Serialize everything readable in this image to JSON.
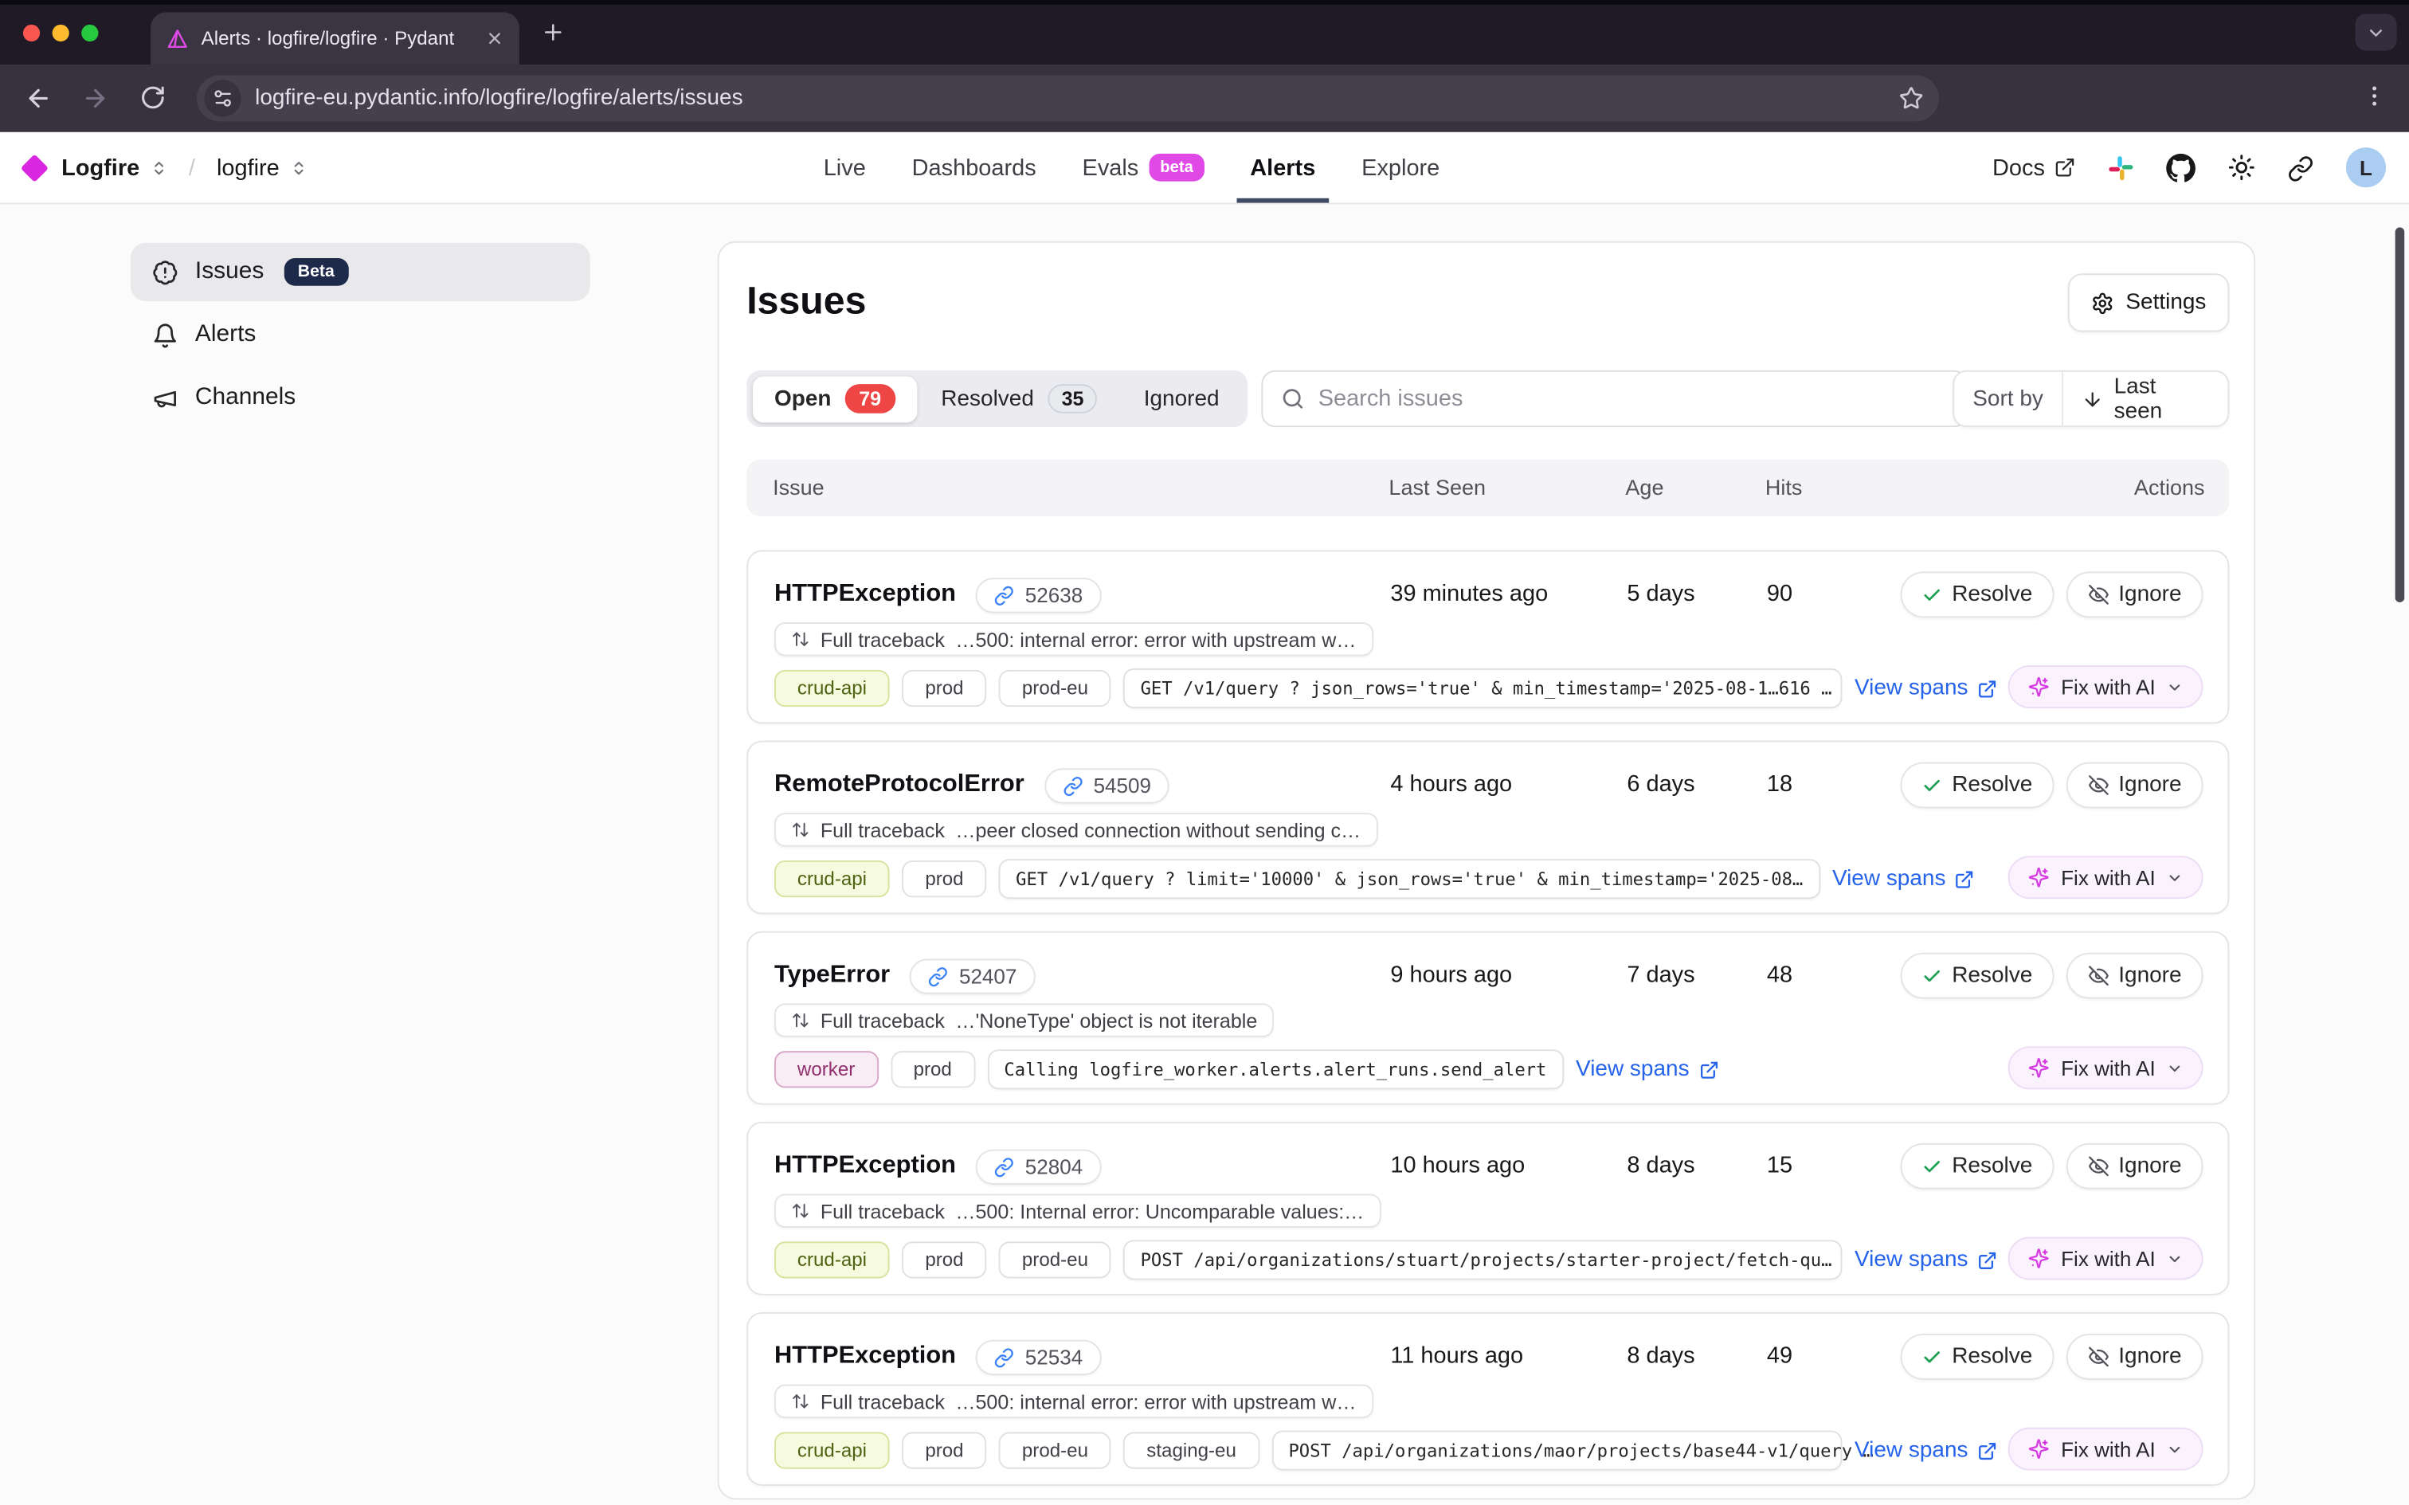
{
  "browser": {
    "tab_title": "Alerts · logfire/logfire · Pydant",
    "url": "logfire-eu.pydantic.info/logfire/logfire/alerts/issues"
  },
  "header": {
    "org": "Logfire",
    "separator": "/",
    "project": "logfire",
    "nav": [
      {
        "label": "Live"
      },
      {
        "label": "Dashboards"
      },
      {
        "label": "Evals",
        "badge": "beta"
      },
      {
        "label": "Alerts",
        "active": true
      },
      {
        "label": "Explore"
      }
    ],
    "docs_label": "Docs",
    "avatar_initial": "L"
  },
  "sidebar": {
    "items": [
      {
        "label": "Issues",
        "badge": "Beta",
        "active": true
      },
      {
        "label": "Alerts"
      },
      {
        "label": "Channels"
      }
    ]
  },
  "main": {
    "title": "Issues",
    "settings_label": "Settings",
    "filters": {
      "open_label": "Open",
      "open_count": "79",
      "resolved_label": "Resolved",
      "resolved_count": "35",
      "ignored_label": "Ignored"
    },
    "search_placeholder": "Search issues",
    "sort_by_label": "Sort by",
    "sort_value": "Last seen",
    "columns": [
      "Issue",
      "Last Seen",
      "Age",
      "Hits",
      "Actions"
    ],
    "row_labels": {
      "full_traceback": "Full traceback",
      "resolve": "Resolve",
      "ignore": "Ignore",
      "view_spans": "View spans",
      "fix_with_ai": "Fix with AI"
    },
    "issues": [
      {
        "title": "HTTPException",
        "id": "52638",
        "last_seen": "39 minutes ago",
        "age": "5 days",
        "hits": "90",
        "traceback": "…500: internal error: error with upstream w…",
        "tags": [
          {
            "label": "crud-api",
            "variant": "green"
          },
          {
            "label": "prod",
            "variant": "plain"
          },
          {
            "label": "prod-eu",
            "variant": "plain"
          }
        ],
        "code": "GET /v1/query ? json_rows='true' & min_timestamp='2025-08-1…616 …"
      },
      {
        "title": "RemoteProtocolError",
        "id": "54509",
        "last_seen": "4 hours ago",
        "age": "6 days",
        "hits": "18",
        "traceback": "…peer closed connection without sending c…",
        "tags": [
          {
            "label": "crud-api",
            "variant": "green"
          },
          {
            "label": "prod",
            "variant": "plain"
          }
        ],
        "code": "GET /v1/query ? limit='10000' & json_rows='true' & min_timestamp='2025-08…"
      },
      {
        "title": "TypeError",
        "id": "52407",
        "last_seen": "9 hours ago",
        "age": "7 days",
        "hits": "48",
        "traceback": "…'NoneType' object is not iterable",
        "tags": [
          {
            "label": "worker",
            "variant": "pink"
          },
          {
            "label": "prod",
            "variant": "plain"
          }
        ],
        "code": "Calling logfire_worker.alerts.alert_runs.send_alert"
      },
      {
        "title": "HTTPException",
        "id": "52804",
        "last_seen": "10 hours ago",
        "age": "8 days",
        "hits": "15",
        "traceback": "…500: Internal error: Uncomparable values:…",
        "tags": [
          {
            "label": "crud-api",
            "variant": "green"
          },
          {
            "label": "prod",
            "variant": "plain"
          },
          {
            "label": "prod-eu",
            "variant": "plain"
          }
        ],
        "code": "POST /api/organizations/stuart/projects/starter-project/fetch-qu…"
      },
      {
        "title": "HTTPException",
        "id": "52534",
        "last_seen": "11 hours ago",
        "age": "8 days",
        "hits": "49",
        "traceback": "…500: internal error: error with upstream w…",
        "tags": [
          {
            "label": "crud-api",
            "variant": "green"
          },
          {
            "label": "prod",
            "variant": "plain"
          },
          {
            "label": "prod-eu",
            "variant": "plain"
          },
          {
            "label": "staging-eu",
            "variant": "plain"
          }
        ],
        "code": "POST /api/organizations/maor/projects/base44-v1/query …"
      }
    ]
  },
  "colors": {
    "accent_magenta": "#e049e6",
    "brand_diamond": "#d926e0",
    "open_count_red": "#ee4545",
    "link_blue": "#2563eb",
    "resolve_green": "#1ea052",
    "nav_underline": "#3e4a63",
    "beta_navy": "#1e2a4a",
    "avatar_blue": "#abcdf2",
    "tag_green_bg": "#f6fadf",
    "tag_pink_bg": "#f9edf5",
    "fix_ai_bg": "#faf3fd",
    "sparkle_magenta": "#d63ae2",
    "chrome_dark": "#1f1a26"
  }
}
